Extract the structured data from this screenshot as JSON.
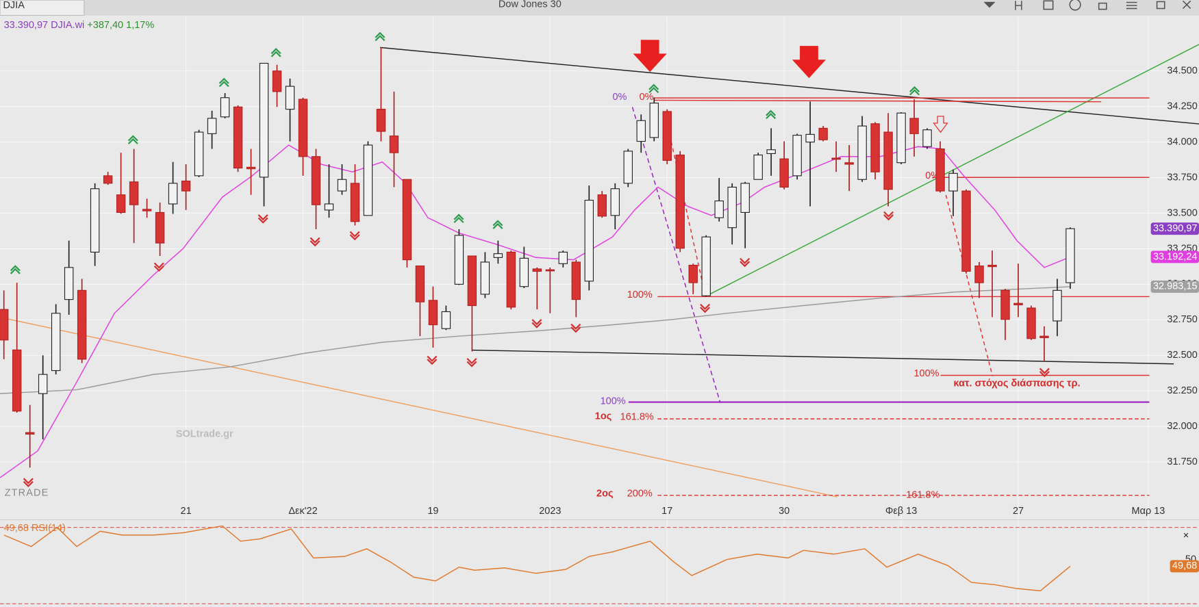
{
  "chart_data": [
    {
      "type": "candlestick",
      "title": "Dow Jones 30",
      "symbol": "DJIA",
      "quote": "33.390,97 DJIA.wi",
      "change": "+387,40 1,17%",
      "open": [
        32823,
        32538,
        31957,
        32231,
        32393,
        32893,
        32957,
        33226,
        33763,
        33629,
        33720,
        33527,
        33505,
        33565,
        33726,
        33763,
        34059,
        34177,
        34247,
        33823,
        33753,
        34500,
        34231,
        34301,
        33898,
        33522,
        33656,
        33710,
        33484,
        34231,
        34043,
        33737,
        33129,
        32887,
        32688,
        33000,
        33199,
        32930,
        33188,
        33226,
        32984,
        33108,
        33102,
        33145,
        33156,
        33022,
        33629,
        33484,
        33710,
        34005,
        34032,
        34215,
        33909,
        33134,
        32919,
        33468,
        33398,
        33505,
        33737,
        33919,
        33882,
        33763,
        34000,
        34097,
        33887,
        33855,
        33737,
        34129,
        34070,
        33855,
        34167,
        33968,
        33952,
        33656,
        33656,
        33129,
        33134,
        32957,
        32866,
        32833,
        32635,
        32742,
        33011
      ],
      "high": [
        32957,
        33011,
        32151,
        32500,
        32860,
        33307,
        33038,
        33710,
        33790,
        33925,
        33952,
        33602,
        33575,
        33860,
        33844,
        34086,
        34220,
        34344,
        34258,
        33952,
        34554,
        34543,
        34446,
        34312,
        33952,
        33844,
        33844,
        33844,
        34005,
        34667,
        34355,
        33737,
        33129,
        32984,
        32850,
        33387,
        33199,
        33226,
        33307,
        33237,
        33264,
        33118,
        33118,
        33237,
        33172,
        33694,
        33656,
        33710,
        33952,
        34194,
        34312,
        34231,
        33936,
        33145,
        33344,
        33747,
        33710,
        33720,
        33925,
        34097,
        34005,
        34059,
        34285,
        34113,
        34005,
        33979,
        34183,
        34140,
        34204,
        34210,
        34301,
        34097,
        34005,
        33807,
        33667,
        33156,
        33237,
        32968,
        33145,
        32850,
        32704,
        33038,
        33400
      ],
      "low": [
        32473,
        32097,
        31710,
        31909,
        32366,
        32785,
        32446,
        33129,
        33699,
        33495,
        33290,
        33468,
        33199,
        33495,
        33522,
        33753,
        33952,
        34167,
        33790,
        33629,
        33548,
        34247,
        34005,
        33763,
        33387,
        33468,
        33629,
        33414,
        33484,
        34005,
        33683,
        33118,
        32635,
        32554,
        32678,
        32995,
        32527,
        32903,
        33145,
        32823,
        32973,
        32823,
        32796,
        33118,
        32769,
        32957,
        33468,
        33387,
        33683,
        33925,
        34005,
        33844,
        33226,
        32930,
        32914,
        33441,
        33280,
        33253,
        33737,
        33763,
        33667,
        33737,
        33548,
        34005,
        33790,
        33656,
        33720,
        33737,
        33548,
        33844,
        33898,
        33952,
        33645,
        33479,
        33075,
        32903,
        32769,
        32608,
        32769,
        32608,
        32457,
        32635,
        32968
      ],
      "close": [
        32608,
        32108,
        31946,
        32366,
        32796,
        33118,
        32473,
        33672,
        33710,
        33505,
        33559,
        33516,
        33290,
        33710,
        33656,
        34070,
        34167,
        34312,
        33817,
        33812,
        34554,
        34355,
        34392,
        33898,
        33559,
        33565,
        33737,
        33441,
        33979,
        34075,
        33925,
        33172,
        32876,
        32715,
        32807,
        33344,
        32850,
        33156,
        33215,
        32839,
        33183,
        33091,
        33097,
        33226,
        32893,
        33591,
        33479,
        33672,
        33936,
        34151,
        34274,
        33871,
        33253,
        33011,
        33333,
        33586,
        33683,
        33710,
        33909,
        33946,
        33683,
        34048,
        34054,
        34016,
        33882,
        33844,
        34113,
        33790,
        33667,
        34204,
        34059,
        34086,
        33656,
        33780,
        33091,
        33011,
        33124,
        32753,
        32855,
        32618,
        32624,
        32957,
        33391
      ],
      "up_color": "#f2f2f2",
      "down_color": "#d93434",
      "ylim": [
        31505,
        34880
      ],
      "yticks": [
        {
          "value": 31750,
          "label": "31.750"
        },
        {
          "value": 32000,
          "label": "32.000"
        },
        {
          "value": 32250,
          "label": "32.250"
        },
        {
          "value": 32500,
          "label": "32.500"
        },
        {
          "value": 32750,
          "label": "32.750"
        },
        {
          "value": 33000,
          "label": "33.000"
        },
        {
          "value": 33250,
          "label": "33.250"
        },
        {
          "value": 33500,
          "label": "33.500"
        },
        {
          "value": 33750,
          "label": "33.750"
        },
        {
          "value": 34000,
          "label": "34.000"
        },
        {
          "value": 34250,
          "label": "34.250"
        },
        {
          "value": 34500,
          "label": "34.500"
        }
      ],
      "xlim": [
        -0.3,
        91.9
      ],
      "xticks": [
        {
          "value": 14,
          "label": "21"
        },
        {
          "value": 23,
          "label": "Δεκ'22"
        },
        {
          "value": 33,
          "label": "19"
        },
        {
          "value": 42,
          "label": "2023"
        },
        {
          "value": 51,
          "label": "17"
        },
        {
          "value": 60,
          "label": "30"
        },
        {
          "value": 69,
          "label": "Φεβ 13"
        },
        {
          "value": 78,
          "label": "27"
        },
        {
          "value": 88,
          "label": "Μαρ 13"
        }
      ],
      "series": [
        {
          "color": "#e23de0",
          "x": [
            -0.3,
            2.6,
            5.6,
            8.5,
            11.5,
            13.8,
            16.8,
            19.1,
            21.9,
            22.9,
            24.4,
            26.8,
            29.1,
            30.9,
            32.6,
            35,
            37.9,
            40.9,
            43.8,
            46.8,
            48.5,
            50.3,
            52.6,
            54.4,
            56.8,
            58.5,
            61.5,
            64.4,
            67.4,
            70.3,
            72.1,
            73.8,
            76.2,
            77.9,
            80,
            82
          ],
          "values": [
            31640,
            31828,
            32312,
            32796,
            33065,
            33253,
            33613,
            33763,
            33979,
            33925,
            33844,
            33790,
            33860,
            33710,
            33468,
            33360,
            33280,
            33188,
            33172,
            33333,
            33522,
            33683,
            33548,
            33484,
            33575,
            33683,
            33790,
            33898,
            33898,
            33968,
            33952,
            33763,
            33522,
            33307,
            33118,
            33192
          ]
        },
        {
          "color": "#9a9a9a",
          "x": [
            -0.3,
            5.6,
            11.5,
            17.4,
            23.2,
            29.1,
            35,
            40.9,
            46.8,
            51.5,
            55.6,
            61.5,
            67.4,
            73.2,
            82
          ],
          "values": [
            32231,
            32258,
            32366,
            32419,
            32516,
            32592,
            32635,
            32672,
            32715,
            32753,
            32796,
            32850,
            32903,
            32946,
            32983
          ]
        }
      ],
      "price_labels": [
        {
          "value": 33390.97,
          "label": "33.390,97",
          "color": "#8a3fc4"
        },
        {
          "value": 33192.24,
          "label": "33.192,24",
          "color": "#e23de0"
        },
        {
          "value": 32983.15,
          "label": "32.983,15",
          "color": "#a0a0a0"
        }
      ],
      "annotations": [
        "0%",
        "0%",
        "0%",
        "100%",
        "100%",
        "100%",
        "1ος",
        "161.8%",
        "2ος",
        "200%",
        "161.8%",
        "κατ. στόχος διάσπασης τρ."
      ],
      "watermark": "SOLtrade.gr",
      "brand": "ZTRADE"
    },
    {
      "type": "line",
      "title": "RSI(14)",
      "last_label": "49,68",
      "color": "#e0782c",
      "x": [
        0,
        2.1,
        4.1,
        5.6,
        7.4,
        9.1,
        11.5,
        13.8,
        16.8,
        18.2,
        19.7,
        22.1,
        23.8,
        26.2,
        27.9,
        29.7,
        31.5,
        33.2,
        35,
        36.2,
        38.5,
        40.9,
        43.2,
        45,
        46.8,
        49.7,
        51.5,
        52.9,
        55.6,
        57.9,
        60.3,
        61.5,
        63.8,
        66.2,
        67.9,
        70.3,
        72.6,
        74.4,
        76.2,
        77.9,
        79.7,
        82
      ],
      "values": [
        66,
        60,
        70,
        60,
        68,
        66,
        66,
        67.2,
        70.8,
        62.8,
        64,
        69.2,
        54,
        54.8,
        58.8,
        52,
        44,
        42,
        49.2,
        47.6,
        48.8,
        46,
        48,
        54.8,
        57.2,
        62.8,
        52,
        44.8,
        53.2,
        56,
        54,
        58,
        56,
        58.8,
        49.2,
        56,
        50,
        41.2,
        40,
        38,
        36.8,
        49.68
      ],
      "ylim": [
        30,
        71.6
      ],
      "yticks": [
        50
      ],
      "levels": [
        30,
        70
      ]
    }
  ]
}
